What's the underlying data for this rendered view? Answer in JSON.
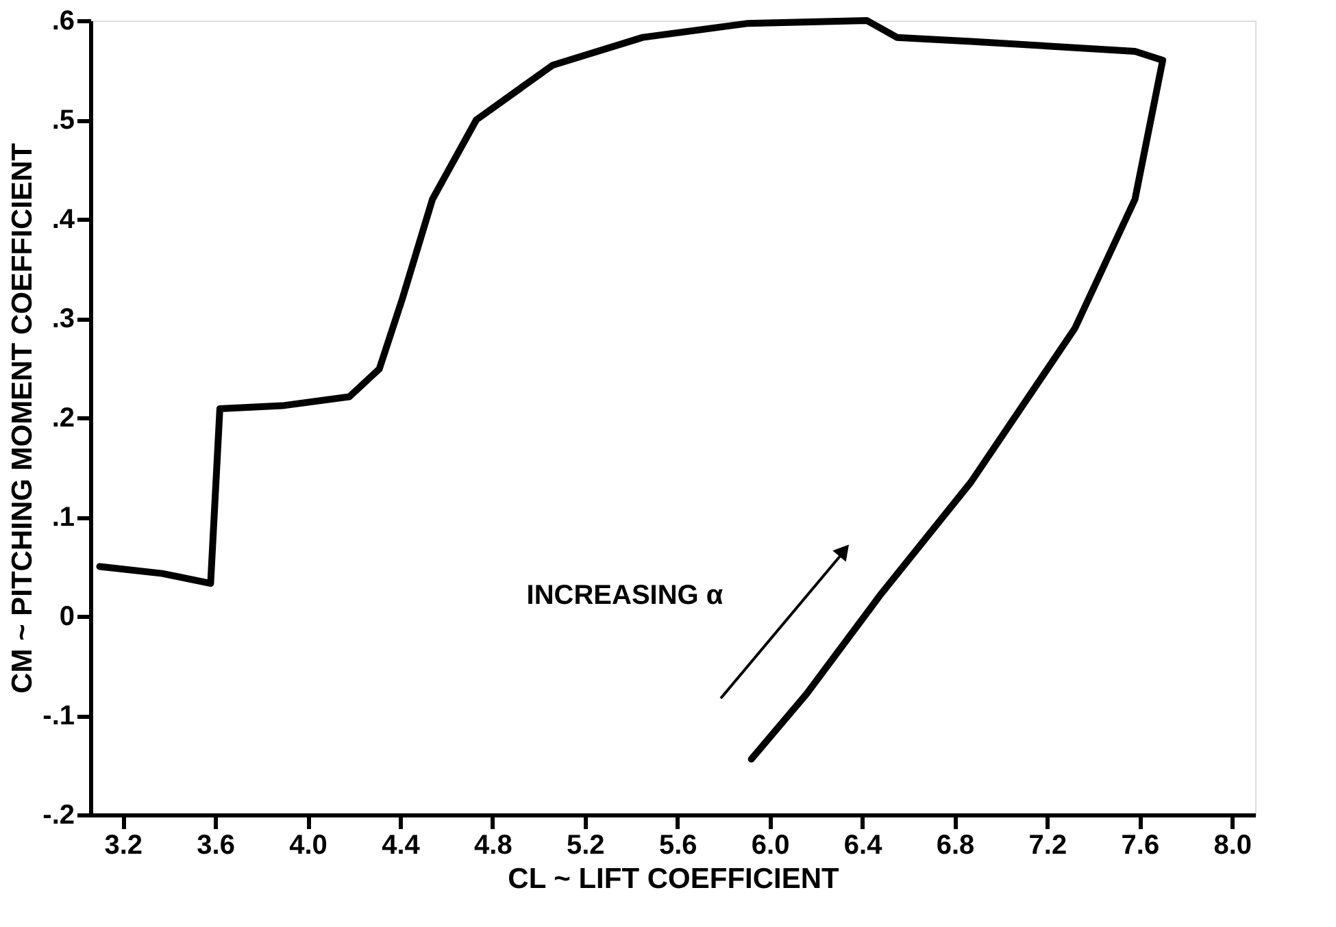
{
  "chart_data": {
    "type": "line",
    "xlabel": "CL ~ LIFT COEFFICIENT",
    "ylabel": "CM ~ PITCHING MOMENT COEFFICIENT",
    "series": [
      {
        "color": "#000000",
        "x": [
          3.1,
          3.37,
          3.58,
          3.62,
          3.89,
          4.18,
          4.31,
          4.41,
          4.54,
          4.73,
          5.06,
          5.45,
          5.9,
          6.42,
          6.55,
          6.87,
          7.58,
          7.7,
          7.58,
          7.32,
          6.87,
          6.48,
          6.16,
          5.92
        ],
        "values": [
          0.05,
          0.043,
          0.033,
          0.209,
          0.212,
          0.221,
          0.249,
          0.32,
          0.42,
          0.5,
          0.555,
          0.583,
          0.597,
          0.6,
          0.583,
          0.579,
          0.569,
          0.56,
          0.42,
          0.29,
          0.135,
          0.022,
          -0.078,
          -0.144
        ]
      }
    ],
    "xlim": [
      3.06,
      8.1
    ],
    "xticks": [
      3.2,
      3.6,
      {
        "value": 4,
        "label": "4.0"
      },
      4.4,
      4.8,
      5.2,
      5.6,
      {
        "value": 6,
        "label": "6.0"
      },
      6.4,
      6.8,
      7.2,
      7.6,
      {
        "value": 8,
        "label": "8.0"
      }
    ],
    "ylim": [
      -0.2,
      0.6
    ],
    "yticks": [
      {
        "value": -0.2,
        "label": "-.2"
      },
      {
        "value": -0.1,
        "label": "-.1"
      },
      0,
      {
        "value": 0.1,
        "label": ".1"
      },
      {
        "value": 0.2,
        "label": ".2"
      },
      {
        "value": 0.3,
        "label": ".3"
      },
      {
        "value": 0.4,
        "label": ".4"
      },
      {
        "value": 0.5,
        "label": ".5"
      },
      {
        "value": 0.6,
        "label": ".6"
      }
    ],
    "annotations": [
      "INCREASING α"
    ],
    "grid": false,
    "marker": "none",
    "line_style": "solid"
  }
}
